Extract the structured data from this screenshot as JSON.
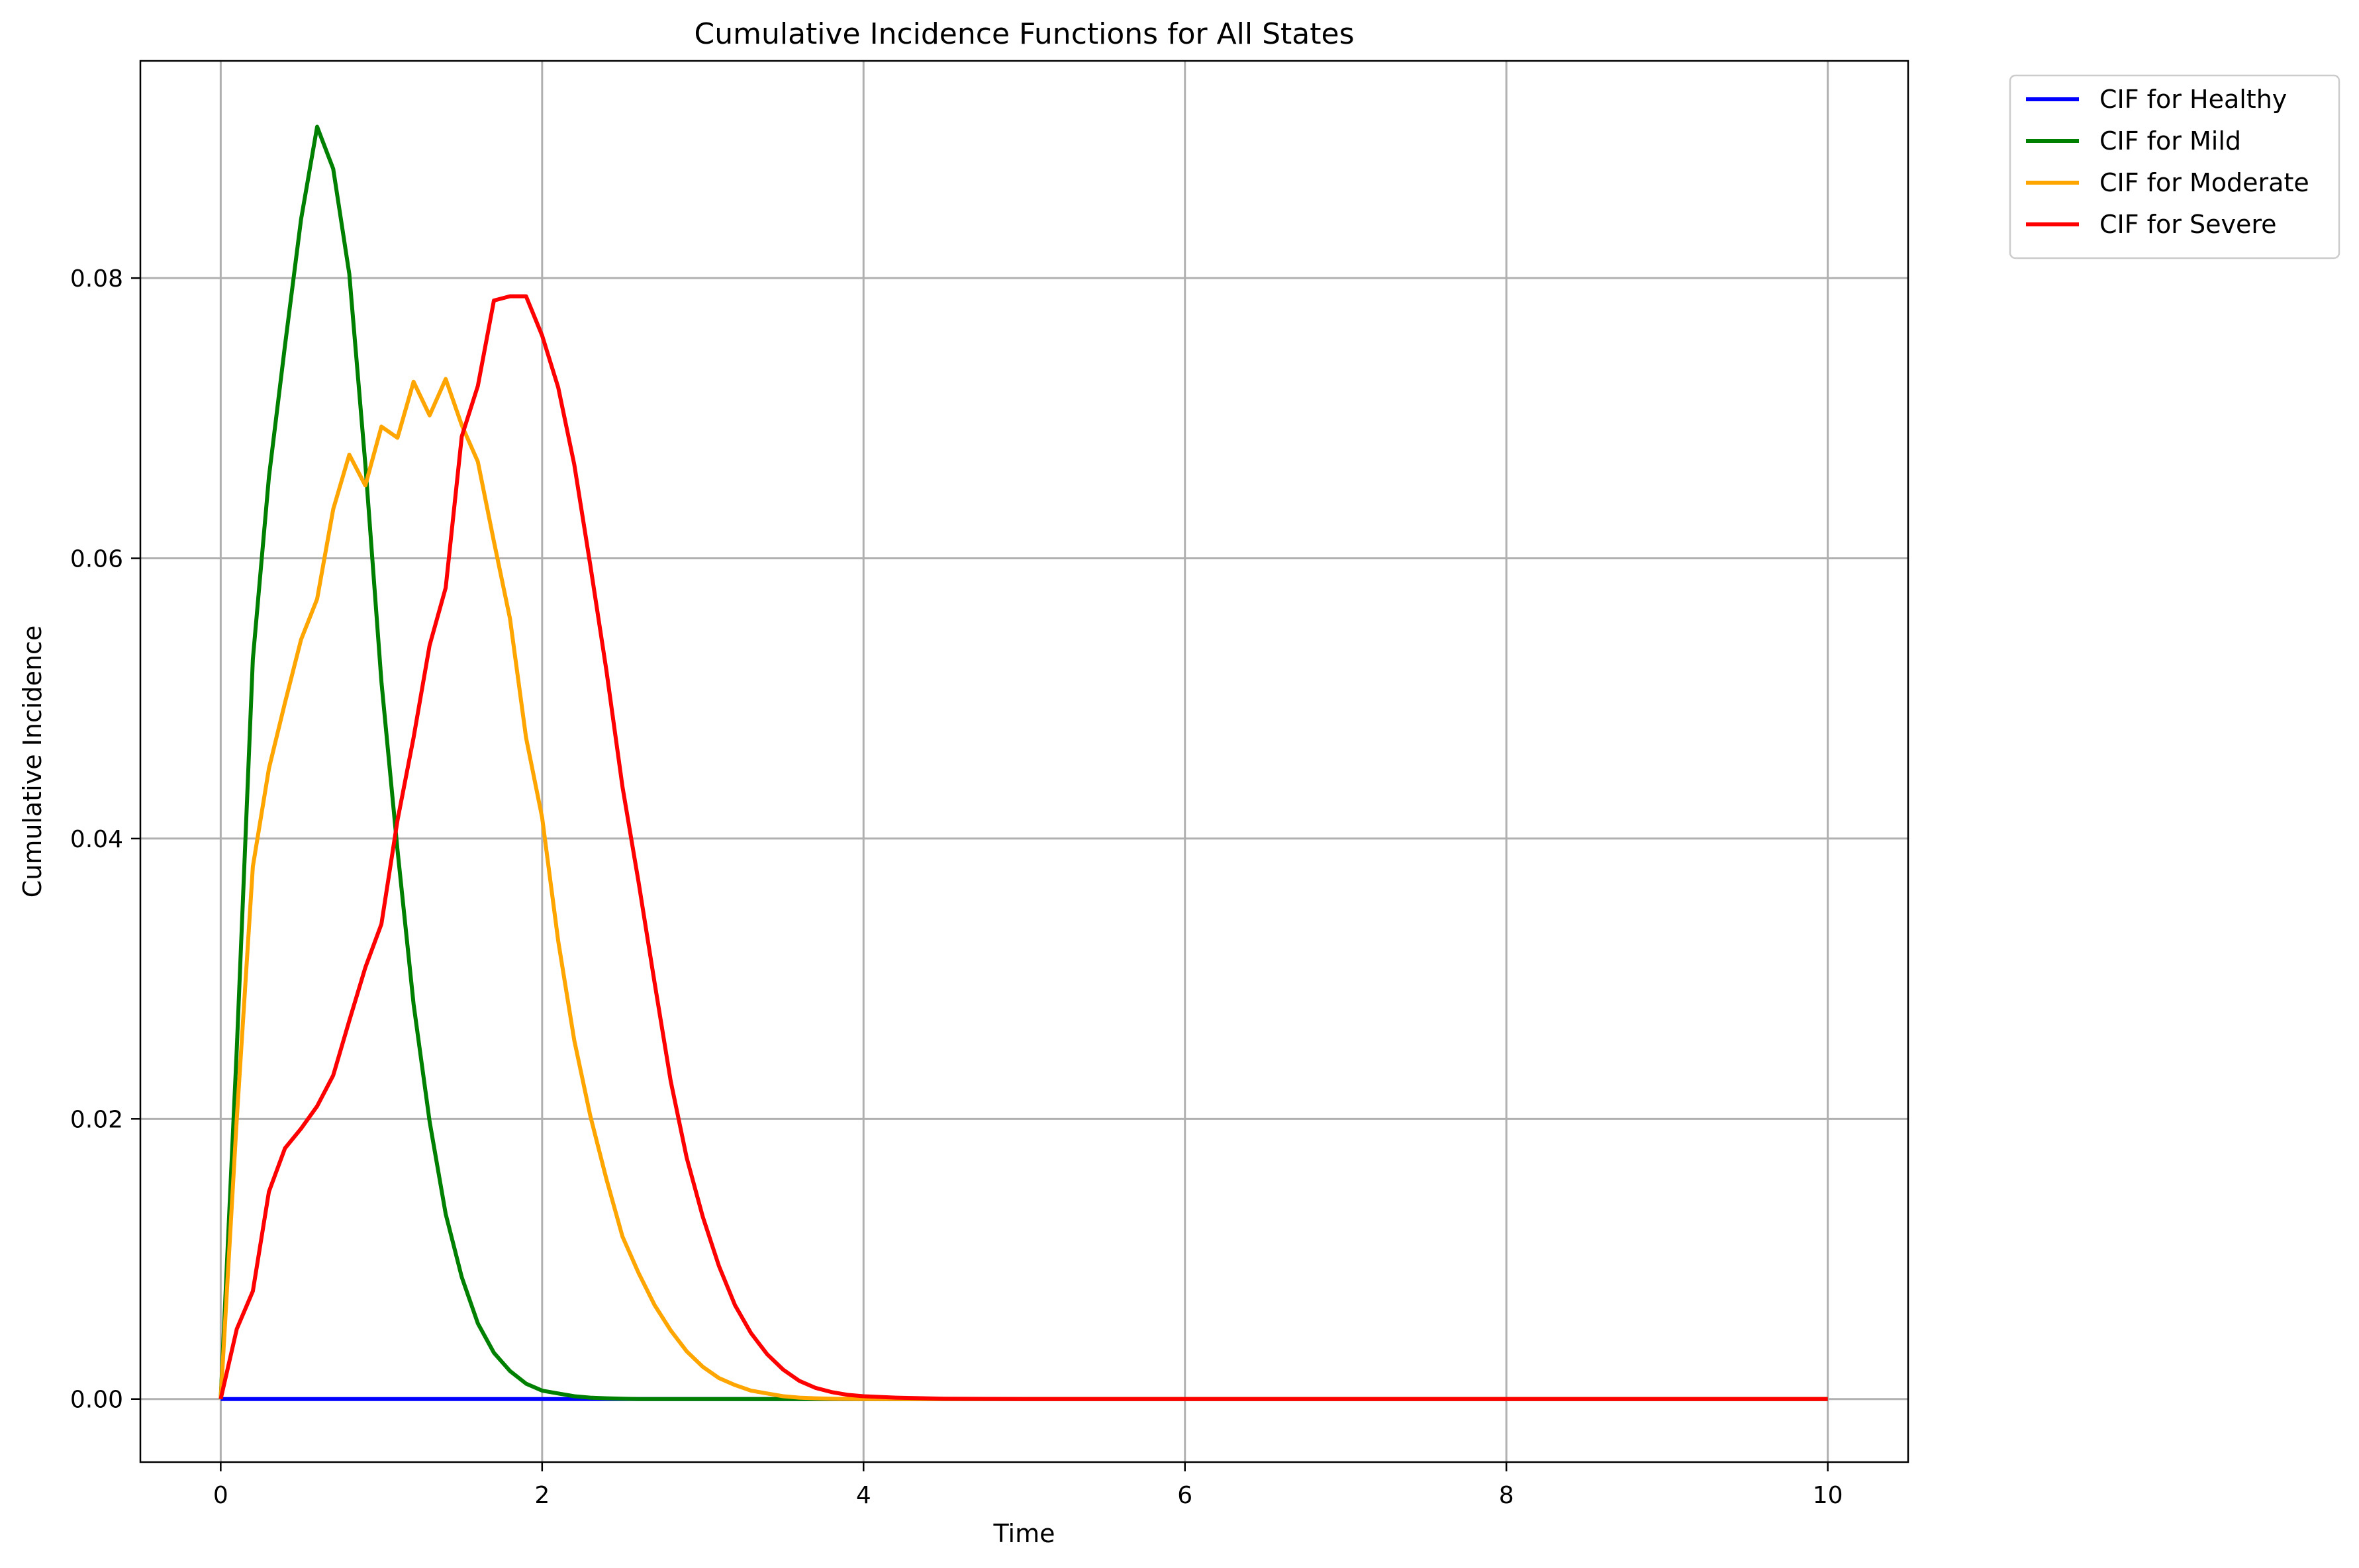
{
  "chart_data": {
    "type": "line",
    "title": "Cumulative Incidence Functions for All States",
    "xlabel": "Time",
    "ylabel": "Cumulative Incidence",
    "xlim": [
      -0.5,
      10.5
    ],
    "ylim": [
      -0.0045,
      0.0955
    ],
    "xticks": [
      0,
      2,
      4,
      6,
      8,
      10
    ],
    "xtick_labels": [
      "0",
      "2",
      "4",
      "6",
      "8",
      "10"
    ],
    "yticks": [
      0.0,
      0.02,
      0.04,
      0.06,
      0.08
    ],
    "ytick_labels": [
      "0.00",
      "0.02",
      "0.04",
      "0.06",
      "0.08"
    ],
    "grid": true,
    "legend_position": "outside-top-right",
    "series": [
      {
        "name": "CIF for Healthy",
        "color": "#0000ff",
        "x": [
          0,
          10
        ],
        "y": [
          0.0,
          0.0
        ]
      },
      {
        "name": "CIF for Mild",
        "color": "#008000",
        "x": [
          0,
          0.1,
          0.2,
          0.3,
          0.4,
          0.5,
          0.6,
          0.7,
          0.8,
          0.9,
          1.0,
          1.1,
          1.2,
          1.3,
          1.4,
          1.5,
          1.6,
          1.7,
          1.8,
          1.9,
          2.0,
          2.1,
          2.2,
          2.3,
          2.4,
          2.5,
          2.6,
          2.8,
          3.0,
          3.5,
          4.0,
          10
        ],
        "y": [
          0.0,
          0.025,
          0.0528,
          0.0658,
          0.0752,
          0.0842,
          0.0908,
          0.0878,
          0.0803,
          0.0667,
          0.0512,
          0.0392,
          0.0282,
          0.0198,
          0.0132,
          0.0087,
          0.0054,
          0.0033,
          0.002,
          0.0011,
          0.0006,
          0.0004,
          0.0002,
          0.0001,
          5e-05,
          2e-05,
          0.0,
          0.0,
          0.0,
          0.0,
          0.0,
          0.0
        ]
      },
      {
        "name": "CIF for Moderate",
        "color": "#ffa500",
        "x": [
          0,
          0.1,
          0.2,
          0.3,
          0.4,
          0.5,
          0.6,
          0.7,
          0.8,
          0.9,
          1.0,
          1.1,
          1.2,
          1.3,
          1.4,
          1.5,
          1.6,
          1.7,
          1.8,
          1.9,
          2.0,
          2.1,
          2.2,
          2.3,
          2.4,
          2.5,
          2.6,
          2.7,
          2.8,
          2.9,
          3.0,
          3.1,
          3.2,
          3.3,
          3.4,
          3.5,
          3.6,
          3.7,
          3.8,
          3.9,
          4.0,
          10
        ],
        "y": [
          0.0,
          0.02,
          0.038,
          0.045,
          0.0497,
          0.0542,
          0.0571,
          0.0635,
          0.0674,
          0.0652,
          0.0694,
          0.0686,
          0.0726,
          0.0702,
          0.0728,
          0.0695,
          0.0669,
          0.0612,
          0.0557,
          0.0472,
          0.0415,
          0.0327,
          0.0256,
          0.0202,
          0.0157,
          0.0116,
          0.009,
          0.0067,
          0.0049,
          0.0034,
          0.0023,
          0.0015,
          0.001,
          0.0006,
          0.0004,
          0.0002,
          0.0001,
          5e-05,
          2e-05,
          1e-05,
          0.0,
          0.0
        ]
      },
      {
        "name": "CIF for Severe",
        "color": "#ff0000",
        "x": [
          0,
          0.1,
          0.2,
          0.3,
          0.4,
          0.5,
          0.6,
          0.7,
          0.8,
          0.9,
          1.0,
          1.1,
          1.2,
          1.3,
          1.4,
          1.5,
          1.6,
          1.7,
          1.8,
          1.9,
          2.0,
          2.1,
          2.2,
          2.3,
          2.4,
          2.5,
          2.6,
          2.7,
          2.8,
          2.9,
          3.0,
          3.1,
          3.2,
          3.3,
          3.4,
          3.5,
          3.6,
          3.7,
          3.8,
          3.9,
          4.0,
          4.2,
          4.5,
          5.0,
          10
        ],
        "y": [
          0.0,
          0.005,
          0.0077,
          0.0148,
          0.0179,
          0.0193,
          0.0209,
          0.0231,
          0.027,
          0.0308,
          0.0339,
          0.0413,
          0.0472,
          0.0538,
          0.0579,
          0.0687,
          0.0723,
          0.0784,
          0.0787,
          0.0787,
          0.0759,
          0.0722,
          0.0667,
          0.0595,
          0.052,
          0.0437,
          0.0369,
          0.0297,
          0.0227,
          0.0172,
          0.013,
          0.0095,
          0.0067,
          0.0047,
          0.0032,
          0.0021,
          0.0013,
          0.0008,
          0.0005,
          0.0003,
          0.0002,
          0.0001,
          2e-05,
          0.0,
          0.0
        ]
      }
    ]
  }
}
